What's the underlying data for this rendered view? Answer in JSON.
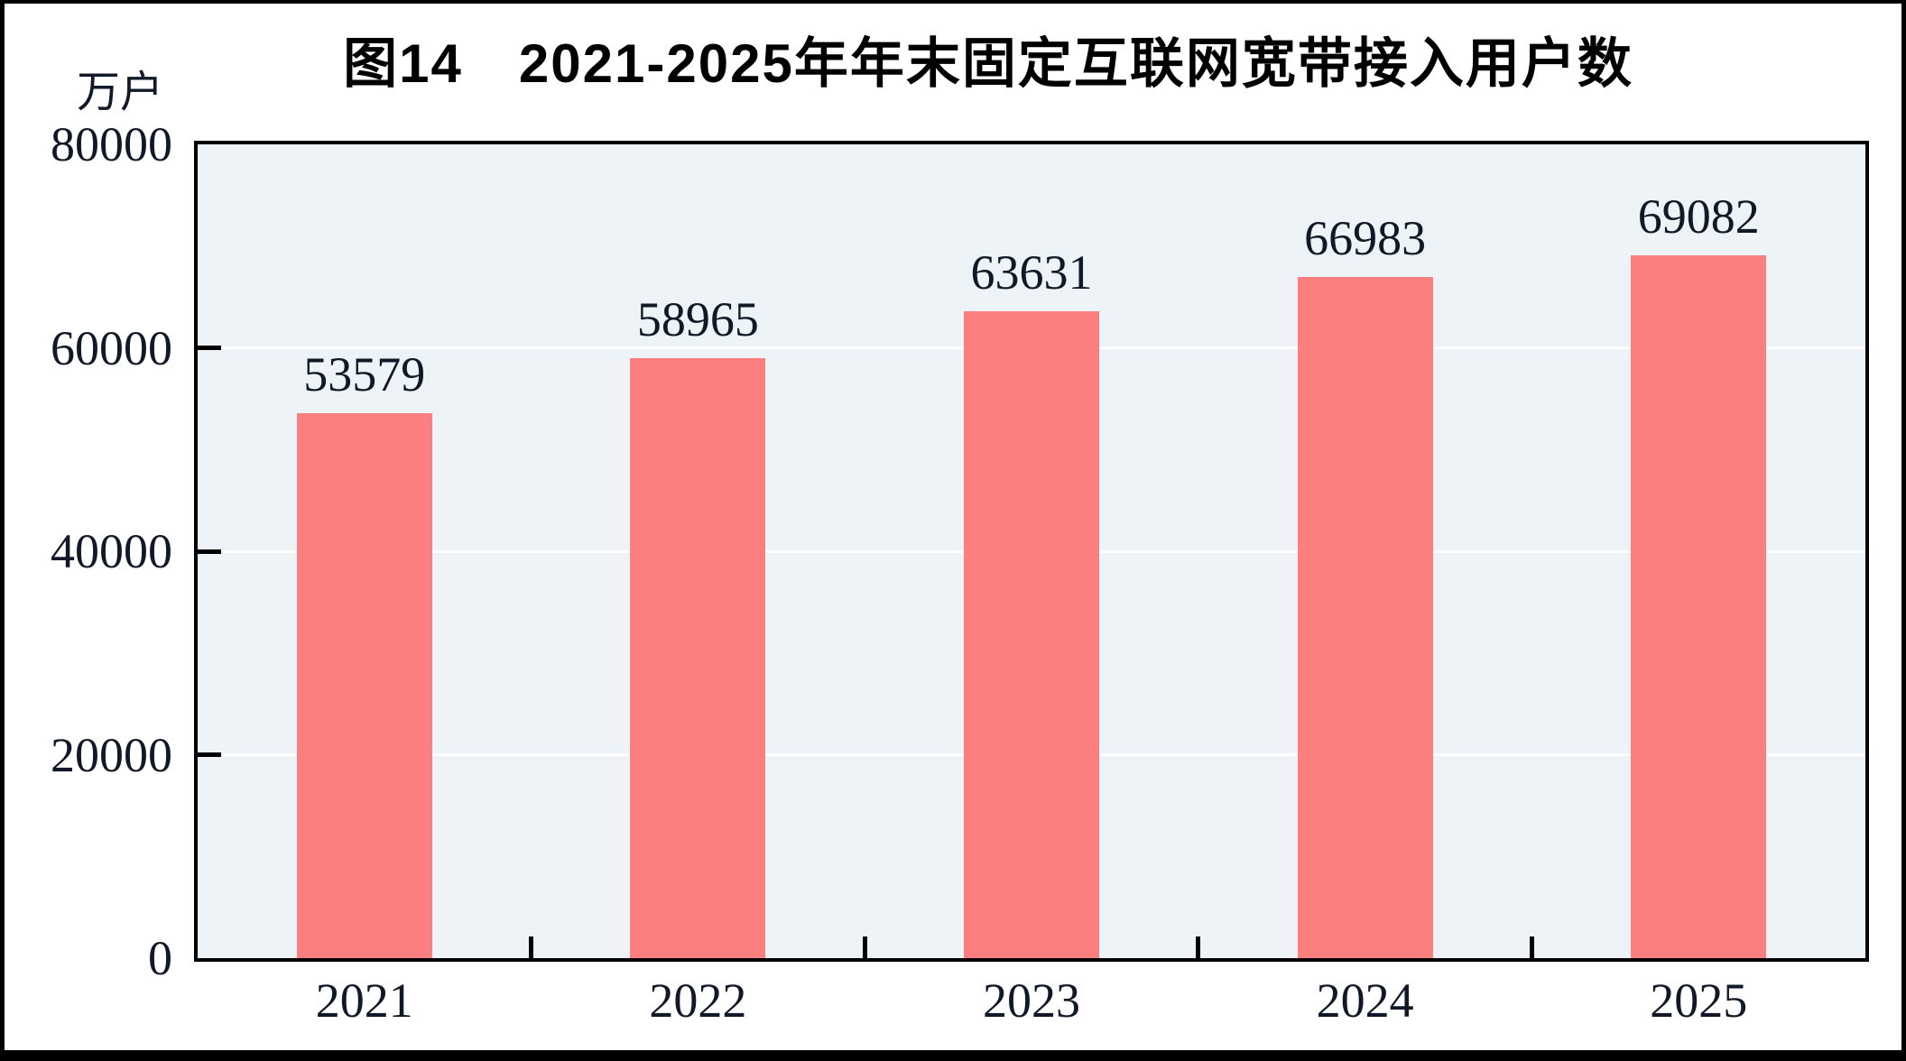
{
  "chart_data": {
    "type": "bar",
    "title": "图14　2021-2025年年末固定互联网宽带接入用户数",
    "unit_label": "万户",
    "categories": [
      "2021",
      "2022",
      "2023",
      "2024",
      "2025"
    ],
    "values": [
      53579,
      58965,
      63631,
      66983,
      69082
    ],
    "value_labels": [
      "53579",
      "58965",
      "63631",
      "66983",
      "69082"
    ],
    "ytick_labels": [
      "0",
      "20000",
      "40000",
      "60000",
      "80000"
    ],
    "yticks": [
      0,
      20000,
      40000,
      60000,
      80000
    ],
    "ylim": [
      0,
      80000
    ],
    "xlabel": "",
    "ylabel": "万户",
    "grid": "horizontal",
    "legend_position": "none",
    "colors": {
      "bar": "#FB7F7F",
      "plot_background": "#EDF3F6",
      "gridline": "#FFFFFF",
      "axis": "#000000",
      "text": "#111827",
      "frame": "#000000"
    }
  }
}
